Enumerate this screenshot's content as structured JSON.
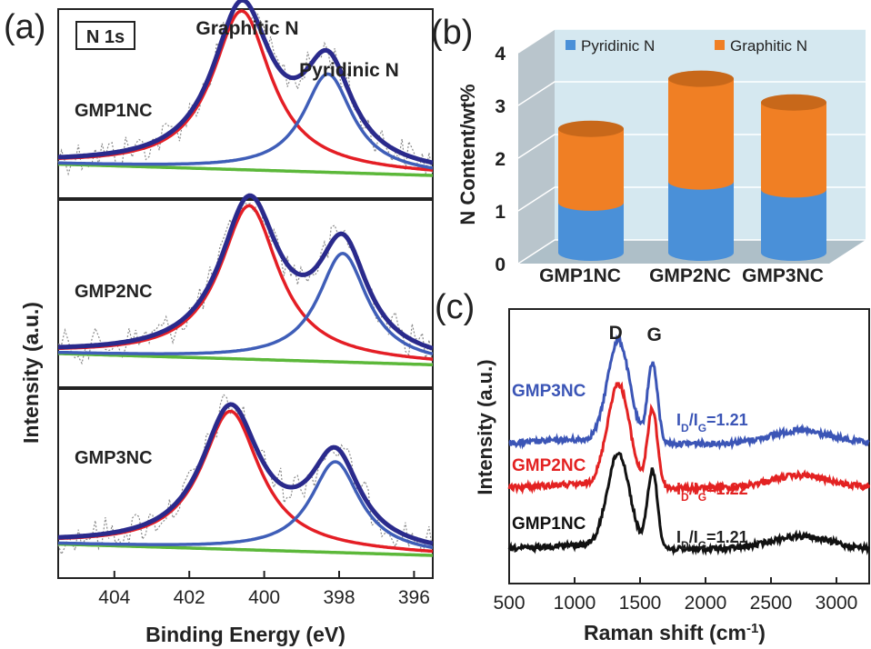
{
  "colors": {
    "graphitic_fit": "#e41e25",
    "pyridinic_fit": "#3f5eb8",
    "envelope": "#2a2a8c",
    "background_line": "#5cb83a",
    "raw_data": "#8a8a8a",
    "bar_pyridinic": "#4a90d8",
    "bar_graphitic": "#f07f24",
    "raman_gmp3nc": "#3b55b6",
    "raman_gmp2nc": "#e32222",
    "raman_gmp1nc": "#111111"
  },
  "panel_a": {
    "label": "(a)",
    "badge": "N 1s",
    "peak_graphitic": "Graphitic N",
    "peak_pyridinic": "Pyridinic N",
    "ylabel": "Intensity (a.u.)",
    "xlabel": "Binding Energy (eV)",
    "subpanels": [
      "GMP1NC",
      "GMP2NC",
      "GMP3NC"
    ]
  },
  "panel_b": {
    "label": "(b)",
    "legend": [
      "Pyridinic N",
      "Graphitic N"
    ],
    "ylabel": "N Content/wt%"
  },
  "panel_c": {
    "label": "(c)",
    "ylabel": "Intensity (a.u.)",
    "xlabel": "Raman shift (cm",
    "xlabel_sup": "-1",
    "xlabel_close": ")",
    "peak_d": "D",
    "peak_g": "G"
  },
  "chart_data": [
    {
      "type": "line",
      "title": "N 1s",
      "xlabel": "Binding Energy (eV)",
      "ylabel": "Intensity (a.u.)",
      "xlim": [
        405.5,
        395.5
      ],
      "xticks": [
        404,
        402,
        400,
        398,
        396
      ],
      "series": [
        {
          "name": "GMP1NC",
          "graphitic_peak_eV": 400.6,
          "pyridinic_peak_eV": 398.3,
          "graphitic_height": 0.84,
          "pyridinic_height": 0.52
        },
        {
          "name": "GMP2NC",
          "graphitic_peak_eV": 400.4,
          "pyridinic_peak_eV": 397.9,
          "graphitic_height": 0.82,
          "pyridinic_height": 0.58
        },
        {
          "name": "GMP3NC",
          "graphitic_peak_eV": 400.9,
          "pyridinic_peak_eV": 398.1,
          "graphitic_height": 0.73,
          "pyridinic_height": 0.48
        }
      ]
    },
    {
      "type": "bar",
      "categories": [
        "GMP1NC",
        "GMP2NC",
        "GMP3NC"
      ],
      "series": [
        {
          "name": "Pyridinic N",
          "values": [
            0.95,
            1.35,
            1.2
          ]
        },
        {
          "name": "Graphitic N",
          "values": [
            1.4,
            1.95,
            1.65
          ]
        }
      ],
      "stacked": true,
      "ylabel": "N Content/wt%",
      "ylim": [
        0,
        4
      ],
      "yticks": [
        0,
        1,
        2,
        3,
        4
      ],
      "legend": "top"
    },
    {
      "type": "line",
      "xlabel": "Raman shift (cm-1)",
      "ylabel": "Intensity (a.u.)",
      "xlim": [
        500,
        3250
      ],
      "xticks": [
        500,
        1000,
        1500,
        2000,
        2500,
        3000
      ],
      "peaks": {
        "D": 1335,
        "G": 1595
      },
      "series": [
        {
          "name": "GMP3NC",
          "ratio_label": "I_D/I_G=1.21",
          "ratio": 1.21
        },
        {
          "name": "GMP2NC",
          "ratio_label": "I_D/I_G=1.22",
          "ratio": 1.22
        },
        {
          "name": "GMP1NC",
          "ratio_label": "I_D/I_G=1.21",
          "ratio": 1.21
        }
      ]
    }
  ]
}
